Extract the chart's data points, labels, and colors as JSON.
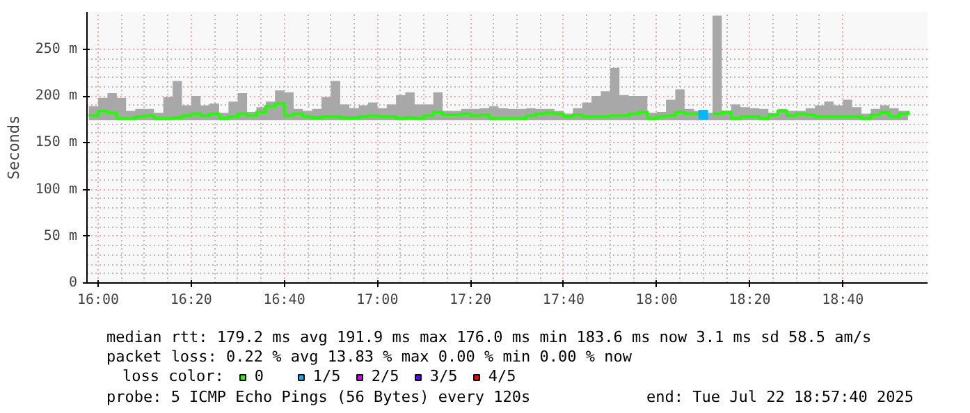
{
  "chart_data": {
    "type": "step",
    "ylabel": "Seconds",
    "legend_title": "loss color:",
    "legend": "bottom",
    "grid": true,
    "xlim": [
      15.96,
      18.97
    ],
    "ylim": [
      0,
      290
    ],
    "xticks": [
      {
        "value": 16,
        "label": "16:00"
      },
      {
        "value": 16.3333,
        "label": "16:20"
      },
      {
        "value": 16.6667,
        "label": "16:40"
      },
      {
        "value": 17,
        "label": "17:00"
      },
      {
        "value": 17.3333,
        "label": "17:20"
      },
      {
        "value": 17.6667,
        "label": "17:40"
      },
      {
        "value": 18,
        "label": "18:00"
      },
      {
        "value": 18.3333,
        "label": "18:20"
      },
      {
        "value": 18.6667,
        "label": "18:40"
      }
    ],
    "yticks": [
      0,
      {
        "value": 50,
        "label": "50 m"
      },
      {
        "value": 100,
        "label": "100 m"
      },
      {
        "value": 150,
        "label": "150 m"
      },
      {
        "value": 200,
        "label": "200 m"
      },
      {
        "value": 250,
        "label": "250 m"
      }
    ],
    "x": [
      15.9667,
      16,
      16.0333,
      16.0667,
      16.1,
      16.1333,
      16.1667,
      16.2,
      16.2333,
      16.2667,
      16.3,
      16.3333,
      16.3667,
      16.4,
      16.4333,
      16.4667,
      16.5,
      16.5333,
      16.5667,
      16.6,
      16.6333,
      16.6667,
      16.7,
      16.7333,
      16.7667,
      16.8,
      16.8333,
      16.8667,
      16.9,
      16.9333,
      16.9667,
      17,
      17.0333,
      17.0667,
      17.1,
      17.1333,
      17.1667,
      17.2,
      17.2333,
      17.2667,
      17.3,
      17.3333,
      17.3667,
      17.4,
      17.4333,
      17.4667,
      17.5,
      17.5333,
      17.5667,
      17.6,
      17.6333,
      17.6667,
      17.7,
      17.7333,
      17.7667,
      17.8,
      17.8333,
      17.8667,
      17.9,
      17.9333,
      17.9667,
      18,
      18.0333,
      18.0667,
      18.1,
      18.1333,
      18.1667,
      18.2,
      18.2333,
      18.2667,
      18.3,
      18.3333,
      18.3667,
      18.4,
      18.4333,
      18.4667,
      18.5,
      18.5333,
      18.5667,
      18.6,
      18.6333,
      18.6667,
      18.7,
      18.7333,
      18.7667,
      18.8,
      18.8333,
      18.8667,
      18.9
    ],
    "series": [
      {
        "name": "0",
        "color": "#20ff00",
        "values": [
          179,
          184,
          182,
          176,
          176,
          178,
          179,
          176,
          176,
          177,
          179,
          181,
          179,
          181,
          176,
          178,
          181,
          179,
          183,
          189,
          192,
          179,
          181,
          178,
          177,
          178,
          178,
          177,
          177,
          178,
          179,
          178,
          178,
          176,
          177,
          176,
          179,
          183,
          180,
          180,
          181,
          179,
          180,
          176,
          176,
          176,
          176,
          179,
          181,
          182,
          181,
          178,
          180,
          178,
          178,
          178,
          179,
          179,
          181,
          183,
          176,
          178,
          179,
          183,
          181,
          181,
          null,
          181,
          183,
          176,
          178,
          178,
          176,
          180,
          184,
          179,
          181,
          180,
          178,
          178,
          178,
          178,
          178,
          176,
          180,
          183,
          178,
          181,
          184
        ],
        "lower": [
          174,
          174,
          174,
          174,
          174,
          174,
          174,
          174,
          174,
          174,
          174,
          174,
          174,
          174,
          174,
          174,
          174,
          174,
          174,
          174,
          174,
          174,
          174,
          174,
          174,
          174,
          174,
          174,
          174,
          174,
          174,
          174,
          174,
          174,
          174,
          174,
          174,
          174,
          174,
          174,
          174,
          174,
          174,
          174,
          174,
          174,
          174,
          174,
          174,
          174,
          174,
          174,
          174,
          174,
          174,
          174,
          174,
          174,
          174,
          174,
          174,
          174,
          174,
          174,
          174,
          174,
          174,
          174,
          174,
          174,
          174,
          174,
          174,
          174,
          174,
          174,
          174,
          174,
          174,
          174,
          174,
          174,
          174,
          174,
          174,
          174,
          174,
          174,
          174
        ],
        "upper": [
          189,
          198,
          203,
          198,
          184,
          186,
          186,
          182,
          199,
          216,
          190,
          200,
          190,
          192,
          182,
          194,
          203,
          183,
          188,
          194,
          206,
          204,
          186,
          184,
          186,
          199,
          216,
          191,
          187,
          190,
          193,
          187,
          191,
          201,
          204,
          191,
          191,
          204,
          184,
          184,
          186,
          186,
          187,
          189,
          187,
          186,
          186,
          187,
          186,
          186,
          184,
          181,
          187,
          193,
          200,
          205,
          230,
          201,
          200,
          200,
          182,
          183,
          196,
          207,
          186,
          184,
          182,
          286,
          184,
          191,
          188,
          187,
          186,
          182,
          186,
          184,
          184,
          187,
          190,
          194,
          190,
          196,
          188,
          181,
          186,
          190,
          187,
          184,
          184
        ]
      },
      {
        "name": "1/5",
        "type": "scatter",
        "marker": "square",
        "color": "#00b8ff",
        "x": [
          18.1667
        ],
        "values": [
          180
        ]
      },
      {
        "name": "2/5",
        "color": "#d000ff",
        "values": [
          null,
          null,
          null,
          null,
          null,
          null,
          null,
          null,
          null,
          null,
          null,
          null,
          null,
          null,
          null,
          null,
          null,
          null,
          null,
          null,
          null,
          null,
          null,
          null,
          null,
          null,
          null,
          null,
          null,
          null,
          null,
          null,
          null,
          null,
          null,
          null,
          null,
          null,
          null,
          null,
          null,
          null,
          null,
          null,
          null,
          null,
          null,
          null,
          null,
          null,
          null,
          null,
          null,
          null,
          null,
          null,
          null,
          null,
          null,
          null,
          null,
          null,
          null,
          null,
          null,
          null,
          null,
          null,
          null,
          null,
          null,
          null,
          null,
          null,
          null,
          null,
          null,
          null,
          null,
          null,
          null,
          null,
          null,
          null,
          null,
          null,
          null,
          null,
          null
        ]
      },
      {
        "name": "3/5",
        "color": "#6000ff",
        "values": [
          null,
          null,
          null,
          null,
          null,
          null,
          null,
          null,
          null,
          null,
          null,
          null,
          null,
          null,
          null,
          null,
          null,
          null,
          null,
          null,
          null,
          null,
          null,
          null,
          null,
          null,
          null,
          null,
          null,
          null,
          null,
          null,
          null,
          null,
          null,
          null,
          null,
          null,
          null,
          null,
          null,
          null,
          null,
          null,
          null,
          null,
          null,
          null,
          null,
          null,
          null,
          null,
          null,
          null,
          null,
          null,
          null,
          null,
          null,
          null,
          null,
          null,
          null,
          null,
          null,
          null,
          null,
          null,
          null,
          null,
          null,
          null,
          null,
          null,
          null,
          null,
          null,
          null,
          null,
          null,
          null,
          null,
          null,
          null,
          null,
          null,
          null,
          null,
          null
        ]
      },
      {
        "name": "4/5",
        "color": "#ff0000",
        "values": [
          null,
          null,
          null,
          null,
          null,
          null,
          null,
          null,
          null,
          null,
          null,
          null,
          null,
          null,
          null,
          null,
          null,
          null,
          null,
          null,
          null,
          null,
          null,
          null,
          null,
          null,
          null,
          null,
          null,
          null,
          null,
          null,
          null,
          null,
          null,
          null,
          null,
          null,
          null,
          null,
          null,
          null,
          null,
          null,
          null,
          null,
          null,
          null,
          null,
          null,
          null,
          null,
          null,
          null,
          null,
          null,
          null,
          null,
          null,
          null,
          null,
          null,
          null,
          null,
          null,
          null,
          null,
          null,
          null,
          null,
          null,
          null,
          null,
          null,
          null,
          null,
          null,
          null,
          null,
          null,
          null,
          null,
          null,
          null,
          null,
          null,
          null,
          null,
          null
        ]
      }
    ],
    "annotations": [
      "median rtt:  179.2 ms avg  191.9 ms max  176.0 ms min  183.6 ms now  3.1 ms sd  58.5   am/s",
      "packet loss: 0.22 % avg  13.83 % max  0.00 % min  0.00 % now",
      "probe:       5 ICMP Echo Pings (56 Bytes) every 120s",
      "end: Tue Jul 22 18:57:40 2025"
    ]
  }
}
